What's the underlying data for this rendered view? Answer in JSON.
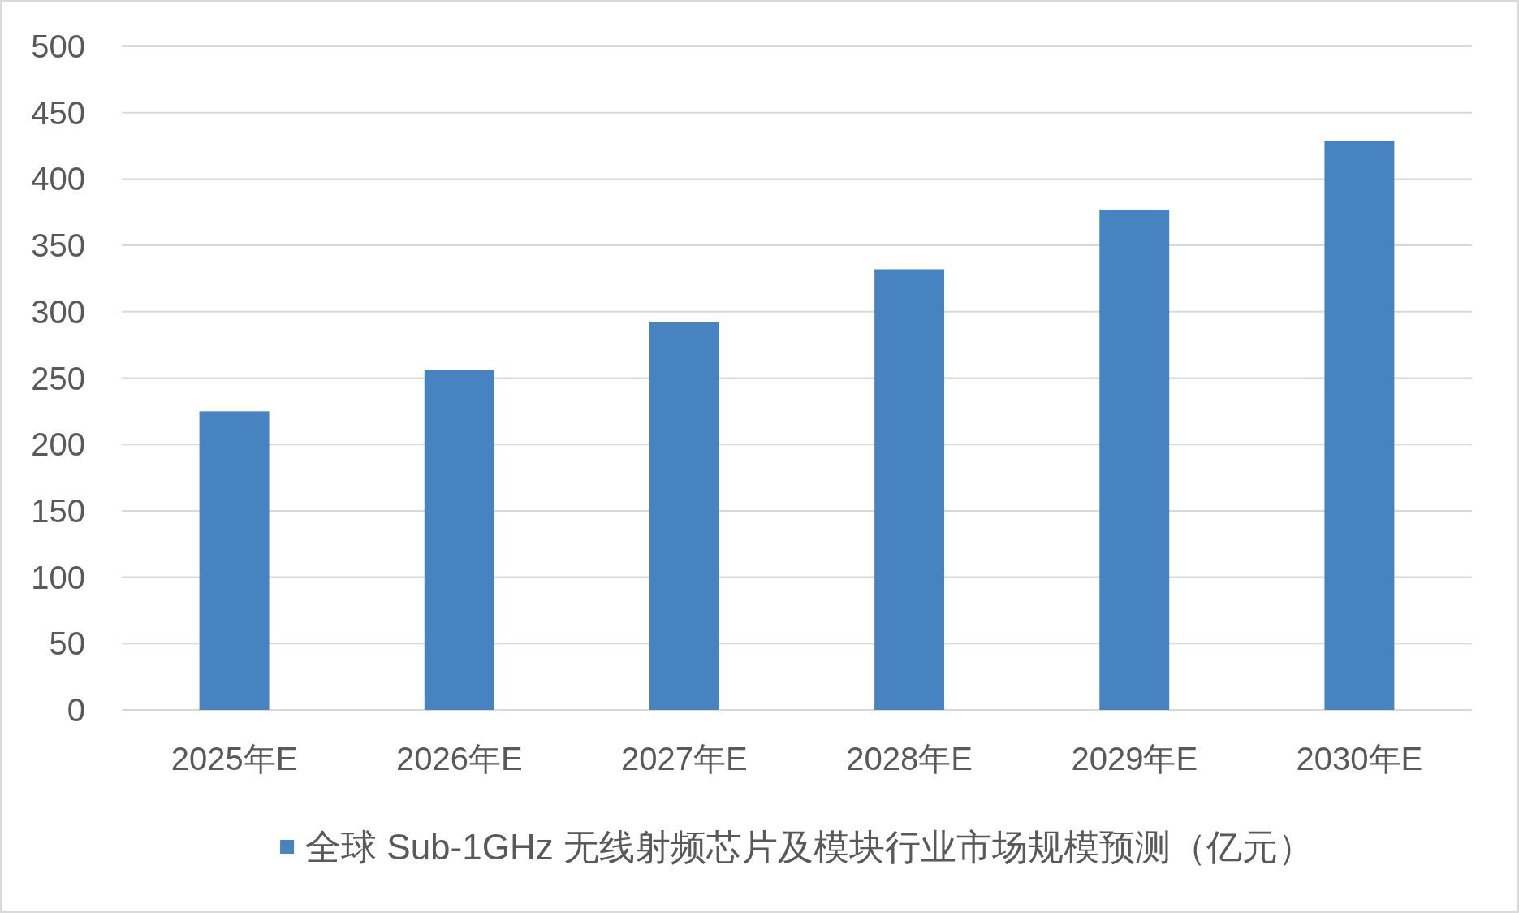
{
  "chart_data": {
    "type": "bar",
    "categories": [
      "2025年E",
      "2026年E",
      "2027年E",
      "2028年E",
      "2029年E",
      "2030年E"
    ],
    "series": [
      {
        "name": "全球 Sub-1GHz 无线射频芯片及模块行业市场规模预测（亿元）",
        "color": "#4783c0",
        "values": [
          225,
          256,
          292,
          332,
          377,
          429
        ]
      }
    ],
    "ylim": [
      0,
      500
    ],
    "yticks": [
      0,
      50,
      100,
      150,
      200,
      250,
      300,
      350,
      400,
      450,
      500
    ],
    "grid": "y",
    "legend": "bottom"
  }
}
